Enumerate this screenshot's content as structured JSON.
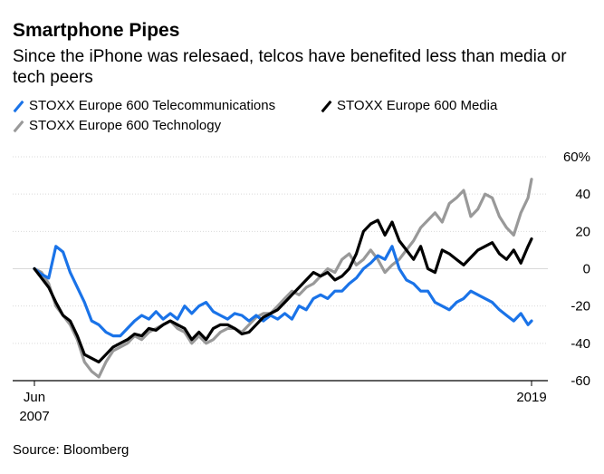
{
  "chart_data": {
    "type": "line",
    "title": "Smartphone Pipes",
    "subtitle": "Since the iPhone was relesaed, telcos have benefited less than media or tech peers",
    "source": "Source: Bloomberg",
    "y_axis": {
      "position": "right",
      "ylim": [
        -60,
        60
      ],
      "ticks": [
        60,
        40,
        20,
        0,
        -20,
        -40,
        -60
      ],
      "tick_labels": [
        "60%",
        "40",
        "20",
        "0",
        "-20",
        "-40",
        "-60"
      ],
      "grid": true
    },
    "x_axis": {
      "xlim": [
        "2007-06",
        "2019-01"
      ],
      "tick_labels": [
        {
          "x": "2007-06",
          "label": "Jun",
          "label2": "2007"
        },
        {
          "x": "2019-01",
          "label": "2019",
          "label2": ""
        }
      ]
    },
    "legend_placement": "top-left",
    "series": [
      {
        "name": "STOXX Europe 600 Telecommunications",
        "color": "#1a73e8",
        "x": [
          "2007-06",
          "2007-08",
          "2007-10",
          "2007-12",
          "2008-02",
          "2008-04",
          "2008-06",
          "2008-08",
          "2008-10",
          "2008-12",
          "2009-02",
          "2009-04",
          "2009-06",
          "2009-08",
          "2009-10",
          "2009-12",
          "2010-02",
          "2010-04",
          "2010-06",
          "2010-08",
          "2010-10",
          "2010-12",
          "2011-02",
          "2011-04",
          "2011-06",
          "2011-08",
          "2011-10",
          "2011-12",
          "2012-02",
          "2012-04",
          "2012-06",
          "2012-08",
          "2012-10",
          "2012-12",
          "2013-02",
          "2013-04",
          "2013-06",
          "2013-08",
          "2013-10",
          "2013-12",
          "2014-02",
          "2014-04",
          "2014-06",
          "2014-08",
          "2014-10",
          "2014-12",
          "2015-02",
          "2015-04",
          "2015-06",
          "2015-08",
          "2015-10",
          "2015-12",
          "2016-02",
          "2016-04",
          "2016-06",
          "2016-08",
          "2016-10",
          "2016-12",
          "2017-02",
          "2017-04",
          "2017-06",
          "2017-08",
          "2017-10",
          "2017-12",
          "2018-02",
          "2018-04",
          "2018-06",
          "2018-08",
          "2018-10",
          "2018-12",
          "2019-01"
        ],
        "values": [
          0,
          -3,
          -5,
          12,
          9,
          -2,
          -10,
          -18,
          -28,
          -30,
          -34,
          -36,
          -36,
          -32,
          -28,
          -25,
          -27,
          -23,
          -27,
          -24,
          -27,
          -20,
          -24,
          -20,
          -18,
          -23,
          -25,
          -27,
          -24,
          -25,
          -28,
          -25,
          -28,
          -25,
          -27,
          -24,
          -27,
          -20,
          -22,
          -16,
          -14,
          -16,
          -12,
          -12,
          -8,
          -5,
          0,
          3,
          7,
          5,
          12,
          0,
          -6,
          -8,
          -12,
          -12,
          -18,
          -20,
          -22,
          -18,
          -16,
          -12,
          -14,
          -16,
          -18,
          -22,
          -25,
          -28,
          -24,
          -30,
          -28
        ]
      },
      {
        "name": "STOXX Europe 600 Media",
        "color": "#000000",
        "x": [
          "2007-06",
          "2007-08",
          "2007-10",
          "2007-12",
          "2008-02",
          "2008-04",
          "2008-06",
          "2008-08",
          "2008-10",
          "2008-12",
          "2009-02",
          "2009-04",
          "2009-06",
          "2009-08",
          "2009-10",
          "2009-12",
          "2010-02",
          "2010-04",
          "2010-06",
          "2010-08",
          "2010-10",
          "2010-12",
          "2011-02",
          "2011-04",
          "2011-06",
          "2011-08",
          "2011-10",
          "2011-12",
          "2012-02",
          "2012-04",
          "2012-06",
          "2012-08",
          "2012-10",
          "2012-12",
          "2013-02",
          "2013-04",
          "2013-06",
          "2013-08",
          "2013-10",
          "2013-12",
          "2014-02",
          "2014-04",
          "2014-06",
          "2014-08",
          "2014-10",
          "2014-12",
          "2015-02",
          "2015-04",
          "2015-06",
          "2015-08",
          "2015-10",
          "2015-12",
          "2016-02",
          "2016-04",
          "2016-06",
          "2016-08",
          "2016-10",
          "2016-12",
          "2017-02",
          "2017-04",
          "2017-06",
          "2017-08",
          "2017-10",
          "2017-12",
          "2018-02",
          "2018-04",
          "2018-06",
          "2018-08",
          "2018-10",
          "2018-12",
          "2019-01"
        ],
        "values": [
          0,
          -5,
          -10,
          -18,
          -25,
          -28,
          -36,
          -46,
          -48,
          -50,
          -46,
          -42,
          -40,
          -38,
          -35,
          -36,
          -32,
          -33,
          -30,
          -28,
          -30,
          -32,
          -38,
          -34,
          -38,
          -32,
          -30,
          -30,
          -32,
          -35,
          -34,
          -30,
          -26,
          -24,
          -22,
          -18,
          -14,
          -10,
          -6,
          -2,
          -4,
          -2,
          -6,
          -4,
          0,
          8,
          20,
          24,
          26,
          18,
          25,
          15,
          10,
          5,
          12,
          0,
          -2,
          10,
          8,
          5,
          2,
          6,
          10,
          12,
          14,
          8,
          5,
          10,
          3,
          12,
          16
        ]
      },
      {
        "name": "STOXX Europe 600 Technology",
        "color": "#999999",
        "x": [
          "2007-06",
          "2007-08",
          "2007-10",
          "2007-12",
          "2008-02",
          "2008-04",
          "2008-06",
          "2008-08",
          "2008-10",
          "2008-12",
          "2009-02",
          "2009-04",
          "2009-06",
          "2009-08",
          "2009-10",
          "2009-12",
          "2010-02",
          "2010-04",
          "2010-06",
          "2010-08",
          "2010-10",
          "2010-12",
          "2011-02",
          "2011-04",
          "2011-06",
          "2011-08",
          "2011-10",
          "2011-12",
          "2012-02",
          "2012-04",
          "2012-06",
          "2012-08",
          "2012-10",
          "2012-12",
          "2013-02",
          "2013-04",
          "2013-06",
          "2013-08",
          "2013-10",
          "2013-12",
          "2014-02",
          "2014-04",
          "2014-06",
          "2014-08",
          "2014-10",
          "2014-12",
          "2015-02",
          "2015-04",
          "2015-06",
          "2015-08",
          "2015-10",
          "2015-12",
          "2016-02",
          "2016-04",
          "2016-06",
          "2016-08",
          "2016-10",
          "2016-12",
          "2017-02",
          "2017-04",
          "2017-06",
          "2017-08",
          "2017-10",
          "2017-12",
          "2018-02",
          "2018-04",
          "2018-06",
          "2018-08",
          "2018-10",
          "2018-12",
          "2019-01"
        ],
        "values": [
          0,
          -2,
          -8,
          -20,
          -25,
          -30,
          -38,
          -50,
          -55,
          -58,
          -50,
          -44,
          -42,
          -40,
          -36,
          -38,
          -34,
          -32,
          -30,
          -28,
          -32,
          -34,
          -40,
          -36,
          -40,
          -38,
          -34,
          -32,
          -32,
          -34,
          -30,
          -26,
          -24,
          -24,
          -20,
          -16,
          -12,
          -14,
          -10,
          -8,
          -4,
          0,
          -2,
          5,
          8,
          2,
          5,
          10,
          5,
          -2,
          2,
          5,
          10,
          15,
          22,
          26,
          30,
          25,
          35,
          38,
          42,
          28,
          32,
          40,
          38,
          28,
          22,
          18,
          30,
          38,
          48
        ]
      }
    ]
  }
}
